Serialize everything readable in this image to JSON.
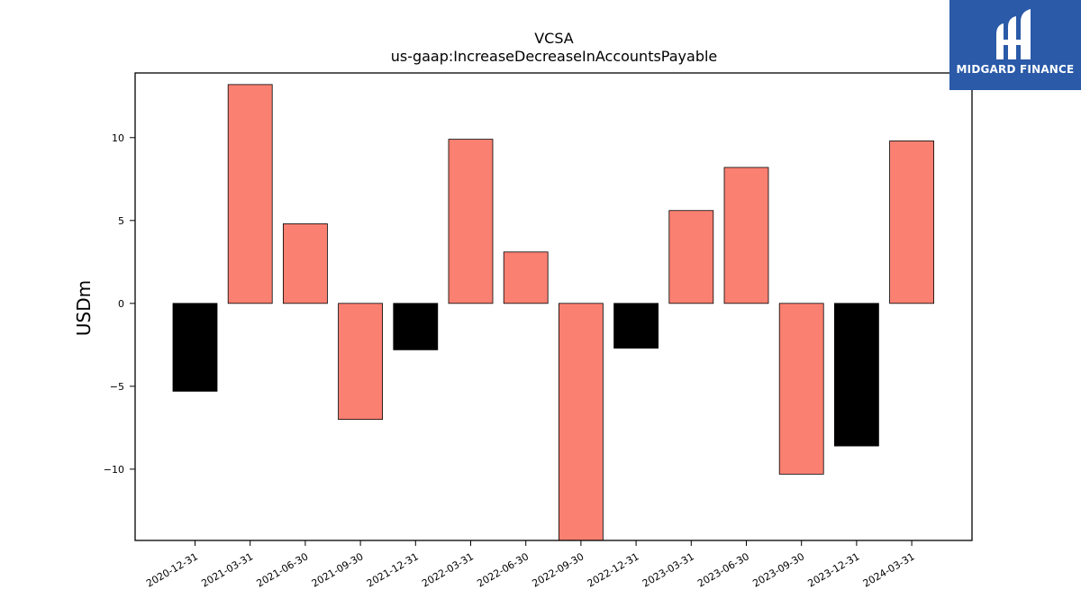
{
  "chart_data": {
    "type": "bar",
    "title": "VCSA",
    "subtitle": "us-gaap:IncreaseDecreaseInAccountsPayable",
    "xlabel": "",
    "ylabel": "USDm",
    "ylim": [
      -14.3,
      13.9
    ],
    "yticks": [
      -10,
      -5,
      0,
      5,
      10
    ],
    "ytick_labels": [
      "−10",
      "−5",
      "0",
      "5",
      "10"
    ],
    "grid": false,
    "categories": [
      "2020-12-31",
      "2021-03-31",
      "2021-06-30",
      "2021-09-30",
      "2021-12-31",
      "2022-03-31",
      "2022-06-30",
      "2022-09-30",
      "2022-12-31",
      "2023-03-31",
      "2023-06-30",
      "2023-09-30",
      "2023-12-31",
      "2024-03-31"
    ],
    "values": [
      -5.3,
      13.2,
      4.8,
      -7.0,
      -2.8,
      9.9,
      3.1,
      -14.3,
      -2.7,
      5.6,
      8.2,
      -10.3,
      -8.6,
      9.8
    ],
    "colors": [
      "#000000",
      "#fa8072",
      "#fa8072",
      "#fa8072",
      "#000000",
      "#fa8072",
      "#fa8072",
      "#fa8072",
      "#000000",
      "#fa8072",
      "#fa8072",
      "#fa8072",
      "#000000",
      "#fa8072"
    ]
  },
  "logo": {
    "text": "MIDGARD FINANCE",
    "background": "#2a5aa8"
  }
}
